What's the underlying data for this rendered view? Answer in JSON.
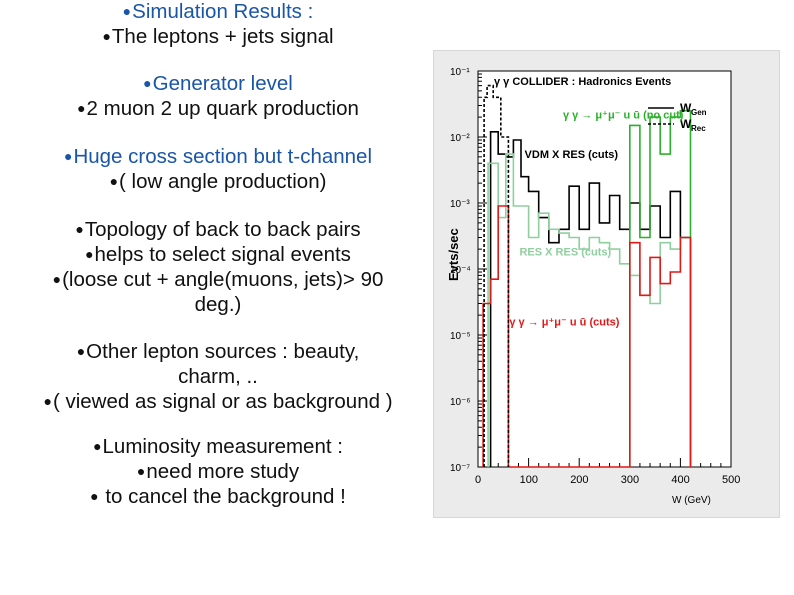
{
  "slide": {
    "bullets": [
      {
        "lines": [
          "Simulation Results :",
          "The leptons + jets signal"
        ],
        "colors": [
          "blue",
          "dark"
        ]
      },
      {
        "lines": [
          "Generator level",
          "2 muon 2 up quark production"
        ],
        "colors": [
          "blue",
          "dark"
        ]
      },
      {
        "lines": [
          "Huge cross section  but t-channel",
          "( low angle production)"
        ],
        "colors": [
          "blue",
          "dark"
        ]
      },
      {
        "lines": [
          "Topology of back to back pairs",
          "helps to select signal events",
          "(loose cut + angle(muons, jets)> 90",
          "deg.)"
        ],
        "colors": [
          "dark",
          "dark",
          "dark",
          "dark"
        ]
      },
      {
        "lines": [
          "Other lepton sources : beauty,",
          "charm, ..",
          "( viewed as signal or as background )"
        ],
        "colors": [
          "dark",
          "dark",
          "dark"
        ]
      },
      {
        "lines": [
          "Luminosity measurement :",
          "need more study",
          " to cancel the background  !"
        ],
        "colors": [
          "dark",
          "dark",
          "dark"
        ]
      }
    ],
    "bullet_glyph": "●",
    "colors": {
      "blue": "#1a56a8",
      "dark": "#111111"
    }
  },
  "chart_data": {
    "type": "line",
    "title": "γ γ COLLIDER : Hadronics Events",
    "xlabel": "W (GeV)",
    "ylabel": "Evts/sec",
    "x_ticks": [
      "0",
      "100",
      "200",
      "300",
      "400",
      "500"
    ],
    "y_ticks": [
      "10⁻¹",
      "10⁻²",
      "10⁻³",
      "10⁻⁴",
      "10⁻⁵",
      "10⁻⁶",
      "10⁻⁷"
    ],
    "xlim": [
      0,
      500
    ],
    "ylim": [
      1e-07,
      0.1
    ],
    "y_scale": "log",
    "grid": false,
    "legend": {
      "placement": "top-right",
      "entries": [
        {
          "sym": "W",
          "sub": "Gen",
          "style": "solid"
        },
        {
          "sym": "W",
          "sub": "Rec",
          "style": "dashed"
        }
      ]
    },
    "annotations": [
      {
        "text": "γ  γ → μ⁺μ⁻  u ū (no cut)",
        "color": "#2bb02b",
        "x": 168,
        "y": 0.019
      },
      {
        "text": "VDM X RES (cuts)",
        "color": "#000000",
        "x": 92,
        "y": 0.0048
      },
      {
        "text": "RES X RES (cuts)",
        "color": "#8fcf9f",
        "x": 82,
        "y": 0.00016
      },
      {
        "text": "γ  γ → μ⁺μ⁻ u ū (cuts)",
        "color": "#e01818",
        "x": 62,
        "y": 1.4e-05
      }
    ],
    "series": [
      {
        "name": "VDM X RES (cuts)",
        "color": "#000000",
        "dash": "solid",
        "edges": [
          25,
          40,
          55,
          70,
          85,
          100,
          120,
          140,
          160,
          180,
          200,
          220,
          240,
          260,
          280,
          300,
          320,
          340,
          360,
          380,
          400,
          420
        ],
        "values": [
          0.012,
          0.0055,
          0.005,
          0.009,
          0.0025,
          0.0015,
          0.0006,
          0.00025,
          0.0004,
          0.0018,
          0.0004,
          0.002,
          0.0005,
          0.0013,
          0.0004,
          0.001,
          0.0004,
          0.0009,
          0.0003,
          0.0015,
          0.0003
        ]
      },
      {
        "name": "γ γ → μ⁺μ⁻ u ū (no cut)",
        "color": "#2bb02b",
        "dash": "solid",
        "edges": [
          300,
          320,
          340,
          360,
          380,
          400,
          420
        ],
        "values": [
          0.015,
          0.0003,
          0.02,
          0.0055,
          0.02,
          0.025
        ]
      },
      {
        "name": "RES X RES (cuts)",
        "color": "#8fcf9f",
        "dash": "solid",
        "edges": [
          20,
          40,
          55,
          70,
          85,
          100,
          120,
          140,
          160,
          180,
          200,
          220,
          240,
          260,
          280,
          300,
          320,
          340,
          360,
          380,
          400,
          420
        ],
        "values": [
          0.004,
          0.0006,
          0.0055,
          0.0009,
          0.0009,
          0.0003,
          0.0007,
          0.0004,
          0.00035,
          0.0003,
          0.0002,
          0.0003,
          0.00025,
          0.0002,
          0.00012,
          8e-05,
          4e-05,
          3e-05,
          0.00025,
          0.0002,
          0.0003
        ]
      },
      {
        "name": "γ γ → μ⁺μ⁻ u ū (cuts)",
        "color": "#e01818",
        "dash": "solid",
        "edges": [
          10,
          25,
          40,
          60,
          300,
          320,
          340,
          360,
          380,
          400,
          420
        ],
        "values": [
          3e-05,
          7e-05,
          0.0009,
          1e-07,
          0.00025,
          4e-05,
          0.00015,
          6e-05,
          9e-05,
          0.0003
        ]
      },
      {
        "name": "W Rec (dashed)",
        "color": "#000000",
        "dash": "dashed",
        "edges": [
          12,
          18,
          30,
          45,
          60
        ],
        "values": [
          0.04,
          0.06,
          0.04,
          0.01
        ]
      }
    ]
  }
}
